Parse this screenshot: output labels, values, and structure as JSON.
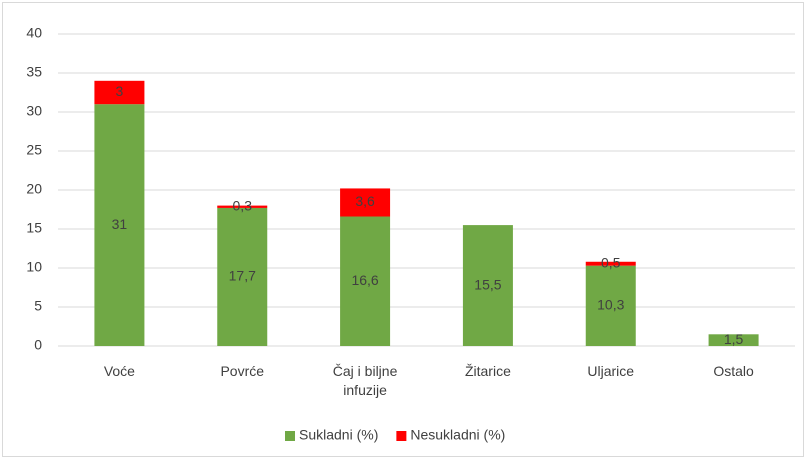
{
  "chart_data": {
    "type": "stacked_bar",
    "categories": [
      "Voće",
      "Povrće",
      "Čaj i biljne infuzije",
      "Žitarice",
      "Uljarice",
      "Ostalo"
    ],
    "series": [
      {
        "name": "Sukladni (%)",
        "color": "#70a845",
        "values": [
          31,
          17.7,
          16.6,
          15.5,
          10.3,
          1.5
        ],
        "value_labels": [
          "31",
          "17,7",
          "16,6",
          "15,5",
          "10,3",
          "1,5"
        ]
      },
      {
        "name": "Nesukladni (%)",
        "color": "#ff0000",
        "values": [
          3,
          0.3,
          3.6,
          null,
          0.5,
          null
        ],
        "value_labels": [
          "3",
          "0,3",
          "3,6",
          null,
          "0,5",
          null
        ]
      }
    ],
    "ylim": [
      0,
      40
    ],
    "yticks": [
      0,
      5,
      10,
      15,
      20,
      25,
      30,
      35,
      40
    ],
    "grid": true,
    "legend": "bottom"
  }
}
